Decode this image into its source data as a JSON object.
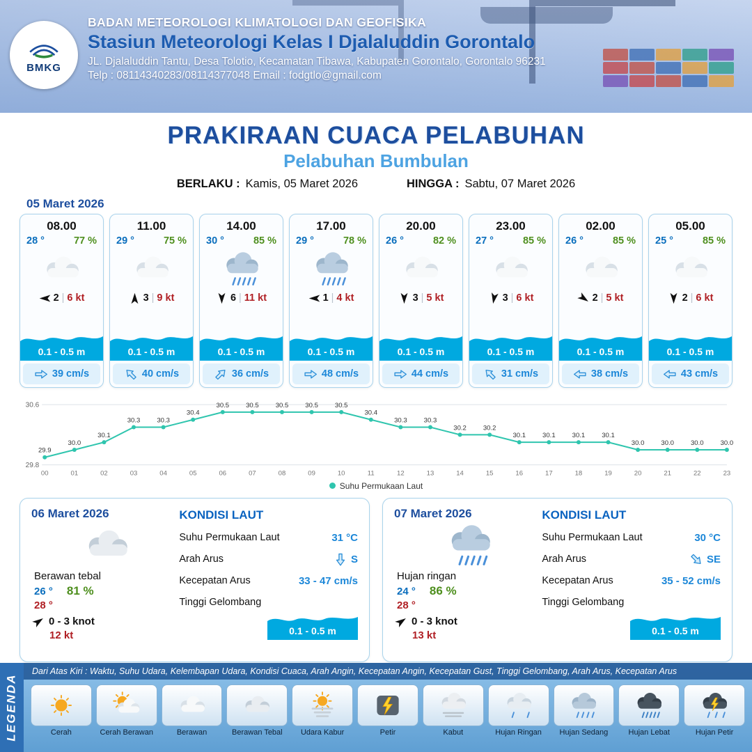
{
  "colors": {
    "accent": "#1d4e9e",
    "subtitle": "#4da3e2",
    "wave": "#00a9e0",
    "temp": "#0a6ebd",
    "hum": "#4e8f1e",
    "red": "#b01f24",
    "chart": "#2fc5ae",
    "seaval": "#1c87d8"
  },
  "header": {
    "logo_text": "BMKG",
    "org": "BADAN METEOROLOGI KLIMATOLOGI DAN GEOFISIKA",
    "station": "Stasiun Meteorologi Kelas I Djalaluddin Gorontalo",
    "address": "JL. Djalaluddin Tantu, Desa Tolotio, Kecamatan Tibawa, Kabupaten Gorontalo, Gorontalo 96231",
    "contact": "Telp : 08114340283/08114377048 Email : fodgtlo@gmail.com"
  },
  "title": {
    "main": "PRAKIRAAN CUACA PELABUHAN",
    "sub": "Pelabuhan Bumbulan",
    "berlaku_label": "BERLAKU :",
    "berlaku_value": "Kamis, 05 Maret 2026",
    "hingga_label": "HINGGA :",
    "hingga_value": "Sabtu, 07 Maret 2026"
  },
  "forecast": {
    "date": "05 Maret 2026",
    "sep": "|",
    "cards": [
      {
        "time": "08.00",
        "temp": "28 °",
        "humidity": "77 %",
        "icon": "cloud",
        "wind_speed": "2",
        "wind_gust": "6 kt",
        "wind_dir": 180,
        "wave": "0.1 - 0.5 m",
        "current_speed": "39 cm/s",
        "current_dir": 0
      },
      {
        "time": "11.00",
        "temp": "29 °",
        "humidity": "75 %",
        "icon": "cloud",
        "wind_speed": "3",
        "wind_gust": "9 kt",
        "wind_dir": -90,
        "wave": "0.1 - 0.5 m",
        "current_speed": "40 cm/s",
        "current_dir": -135
      },
      {
        "time": "14.00",
        "temp": "30 °",
        "humidity": "85 %",
        "icon": "rain",
        "wind_speed": "6",
        "wind_gust": "11 kt",
        "wind_dir": 90,
        "wave": "0.1 - 0.5 m",
        "current_speed": "36 cm/s",
        "current_dir": -45
      },
      {
        "time": "17.00",
        "temp": "29 °",
        "humidity": "78 %",
        "icon": "rain",
        "wind_speed": "1",
        "wind_gust": "4 kt",
        "wind_dir": 180,
        "wave": "0.1 - 0.5 m",
        "current_speed": "48 cm/s",
        "current_dir": 0
      },
      {
        "time": "20.00",
        "temp": "26 °",
        "humidity": "82 %",
        "icon": "cloud",
        "wind_speed": "3",
        "wind_gust": "5 kt",
        "wind_dir": 90,
        "wave": "0.1 - 0.5 m",
        "current_speed": "44 cm/s",
        "current_dir": 0
      },
      {
        "time": "23.00",
        "temp": "27 °",
        "humidity": "85 %",
        "icon": "cloud",
        "wind_speed": "3",
        "wind_gust": "6 kt",
        "wind_dir": 100,
        "wave": "0.1 - 0.5 m",
        "current_speed": "31 cm/s",
        "current_dir": -135
      },
      {
        "time": "02.00",
        "temp": "26 °",
        "humidity": "85 %",
        "icon": "cloud",
        "wind_speed": "2",
        "wind_gust": "5 kt",
        "wind_dir": 35,
        "wave": "0.1 - 0.5 m",
        "current_speed": "38 cm/s",
        "current_dir": 180
      },
      {
        "time": "05.00",
        "temp": "25 °",
        "humidity": "85 %",
        "icon": "cloud",
        "wind_speed": "2",
        "wind_gust": "6 kt",
        "wind_dir": 90,
        "wave": "0.1 - 0.5 m",
        "current_speed": "43 cm/s",
        "current_dir": 180
      }
    ]
  },
  "chart_data": {
    "type": "line",
    "title": "",
    "xlabel": "",
    "ylabel": "",
    "x": [
      "00",
      "01",
      "02",
      "03",
      "04",
      "05",
      "06",
      "07",
      "08",
      "09",
      "10",
      "11",
      "12",
      "13",
      "14",
      "15",
      "16",
      "17",
      "18",
      "19",
      "20",
      "21",
      "22",
      "23"
    ],
    "values": [
      29.9,
      30.0,
      30.1,
      30.3,
      30.3,
      30.4,
      30.5,
      30.5,
      30.5,
      30.5,
      30.5,
      30.4,
      30.3,
      30.3,
      30.2,
      30.2,
      30.1,
      30.1,
      30.1,
      30.1,
      30.0,
      30.0,
      30.0,
      30.0
    ],
    "ylim": [
      29.8,
      30.6
    ],
    "yticks": [
      29.8,
      30.6
    ],
    "legend": "Suhu Permukaan Laut",
    "line_color": "#2fc5ae",
    "grid": true,
    "legend_position": "bottom"
  },
  "days": [
    {
      "date": "06 Maret 2026",
      "icon": "cloud-dark",
      "condition": "Berawan tebal",
      "temp_min": "26 °",
      "humidity": "81 %",
      "temp_max": "28 °",
      "wind_dir": -35,
      "wind": "0 - 3 knot",
      "gust": "12 kt",
      "sea": {
        "title": "KONDISI LAUT",
        "sst_label": "Suhu Permukaan Laut",
        "sst": "31 °C",
        "dir_label": "Arah Arus",
        "dir": "S",
        "dir_deg": 90,
        "speed_label": "Kecepatan Arus",
        "speed": "33 - 47 cm/s",
        "wave_label": "Tinggi Gelombang",
        "wave": "0.1 - 0.5 m"
      }
    },
    {
      "date": "07 Maret 2026",
      "icon": "rain",
      "condition": "Hujan ringan",
      "temp_min": "24 °",
      "humidity": "86 %",
      "temp_max": "28 °",
      "wind_dir": -35,
      "wind": "0 - 3 knot",
      "gust": "13 kt",
      "sea": {
        "title": "KONDISI LAUT",
        "sst_label": "Suhu Permukaan Laut",
        "sst": "30 °C",
        "dir_label": "Arah Arus",
        "dir": "SE",
        "dir_deg": 45,
        "speed_label": "Kecepatan Arus",
        "speed": "35 - 52 cm/s",
        "wave_label": "Tinggi Gelombang",
        "wave": "0.1 - 0.5 m"
      }
    }
  ],
  "legend": {
    "title": "LEGENDA",
    "note": "Dari Atas Kiri : Waktu, Suhu Udara, Kelembapan Udara, Kondisi Cuaca, Arah Angin, Kecepatan Angin, Kecepatan Gust, Tinggi Gelombang, Arah Arus, Kecepatan Arus",
    "items": [
      {
        "label": "Cerah",
        "icon": "sun"
      },
      {
        "label": "Cerah Berawan",
        "icon": "sun-cloud"
      },
      {
        "label": "Berawan",
        "icon": "cloud"
      },
      {
        "label": "Berawan Tebal",
        "icon": "cloud-dark"
      },
      {
        "label": "Udara Kabur",
        "icon": "haze"
      },
      {
        "label": "Petir",
        "icon": "lightning"
      },
      {
        "label": "Kabut",
        "icon": "fog"
      },
      {
        "label": "Hujan Ringan",
        "icon": "rain-light"
      },
      {
        "label": "Hujan Sedang",
        "icon": "rain-moderate"
      },
      {
        "label": "Hujan Lebat",
        "icon": "rain-heavy"
      },
      {
        "label": "Hujan Petir",
        "icon": "rain-thunder"
      }
    ]
  }
}
